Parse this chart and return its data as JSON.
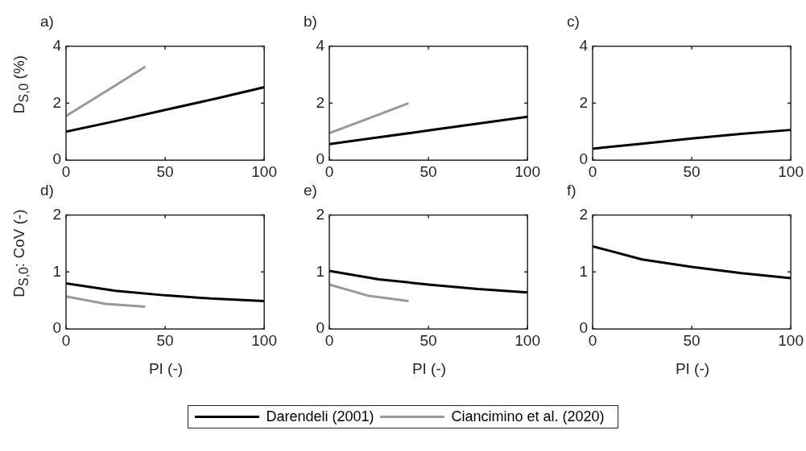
{
  "chart_data": [
    {
      "type": "line",
      "title": "a)",
      "ylabel": "D$_{S,0}$ (%)",
      "x": [
        0,
        25,
        50,
        75,
        100
      ],
      "xlim": [
        0,
        100
      ],
      "xticks": [
        0,
        50,
        100
      ],
      "ylim": [
        0,
        4
      ],
      "yticks": [
        0,
        2,
        4
      ],
      "grid": false,
      "line_style": "solid",
      "marker": "none",
      "legend": "bottom",
      "series": [
        {
          "name": "Darendeli (2001)",
          "color": "#000000",
          "values": [
            1.0,
            1.37,
            1.76,
            2.15,
            2.56
          ]
        },
        {
          "name": "Ciancimino et al. (2020)",
          "color": "#999999",
          "x": [
            0,
            20,
            40
          ],
          "values": [
            1.55,
            2.41,
            3.28
          ]
        }
      ]
    },
    {
      "type": "line",
      "title": "b)",
      "x": [
        0,
        25,
        50,
        75,
        100
      ],
      "xlim": [
        0,
        100
      ],
      "xticks": [
        0,
        50,
        100
      ],
      "ylim": [
        0,
        4
      ],
      "yticks": [
        0,
        2,
        4
      ],
      "grid": false,
      "line_style": "solid",
      "marker": "none",
      "series": [
        {
          "color": "#000000",
          "values": [
            0.56,
            0.8,
            1.04,
            1.28,
            1.52
          ]
        },
        {
          "color": "#999999",
          "x": [
            0,
            20,
            40
          ],
          "values": [
            0.95,
            1.47,
            2.0
          ]
        }
      ]
    },
    {
      "type": "line",
      "title": "c)",
      "x": [
        0,
        25,
        50,
        75,
        100
      ],
      "xlim": [
        0,
        100
      ],
      "xticks": [
        0,
        50,
        100
      ],
      "ylim": [
        0,
        4
      ],
      "yticks": [
        0,
        2,
        4
      ],
      "grid": false,
      "line_style": "solid",
      "marker": "none",
      "series": [
        {
          "color": "#000000",
          "values": [
            0.4,
            0.58,
            0.76,
            0.92,
            1.06
          ]
        }
      ]
    },
    {
      "type": "line",
      "title": "d)",
      "ylabel": "D$_{S,0}$: CoV (-)",
      "xlabel": "PI (-)",
      "x": [
        0,
        25,
        50,
        75,
        100
      ],
      "xlim": [
        0,
        100
      ],
      "xticks": [
        0,
        50,
        100
      ],
      "ylim": [
        0,
        2
      ],
      "yticks": [
        0,
        1,
        2
      ],
      "grid": false,
      "line_style": "solid",
      "marker": "none",
      "series": [
        {
          "color": "#000000",
          "values": [
            0.8,
            0.67,
            0.59,
            0.53,
            0.49
          ]
        },
        {
          "color": "#999999",
          "x": [
            0,
            20,
            40
          ],
          "values": [
            0.57,
            0.44,
            0.39
          ]
        }
      ]
    },
    {
      "type": "line",
      "title": "e)",
      "xlabel": "PI (-)",
      "x": [
        0,
        25,
        50,
        75,
        100
      ],
      "xlim": [
        0,
        100
      ],
      "xticks": [
        0,
        50,
        100
      ],
      "ylim": [
        0,
        2
      ],
      "yticks": [
        0,
        1,
        2
      ],
      "grid": false,
      "line_style": "solid",
      "marker": "none",
      "series": [
        {
          "color": "#000000",
          "values": [
            1.02,
            0.87,
            0.78,
            0.7,
            0.64
          ]
        },
        {
          "color": "#999999",
          "x": [
            0,
            20,
            40
          ],
          "values": [
            0.78,
            0.58,
            0.49
          ]
        }
      ]
    },
    {
      "type": "line",
      "title": "f)",
      "xlabel": "PI (-)",
      "x": [
        0,
        25,
        50,
        75,
        100
      ],
      "xlim": [
        0,
        100
      ],
      "xticks": [
        0,
        50,
        100
      ],
      "ylim": [
        0,
        2
      ],
      "yticks": [
        0,
        1,
        2
      ],
      "grid": false,
      "line_style": "solid",
      "marker": "none",
      "series": [
        {
          "color": "#000000",
          "values": [
            1.45,
            1.22,
            1.09,
            0.98,
            0.89
          ]
        }
      ]
    }
  ]
}
